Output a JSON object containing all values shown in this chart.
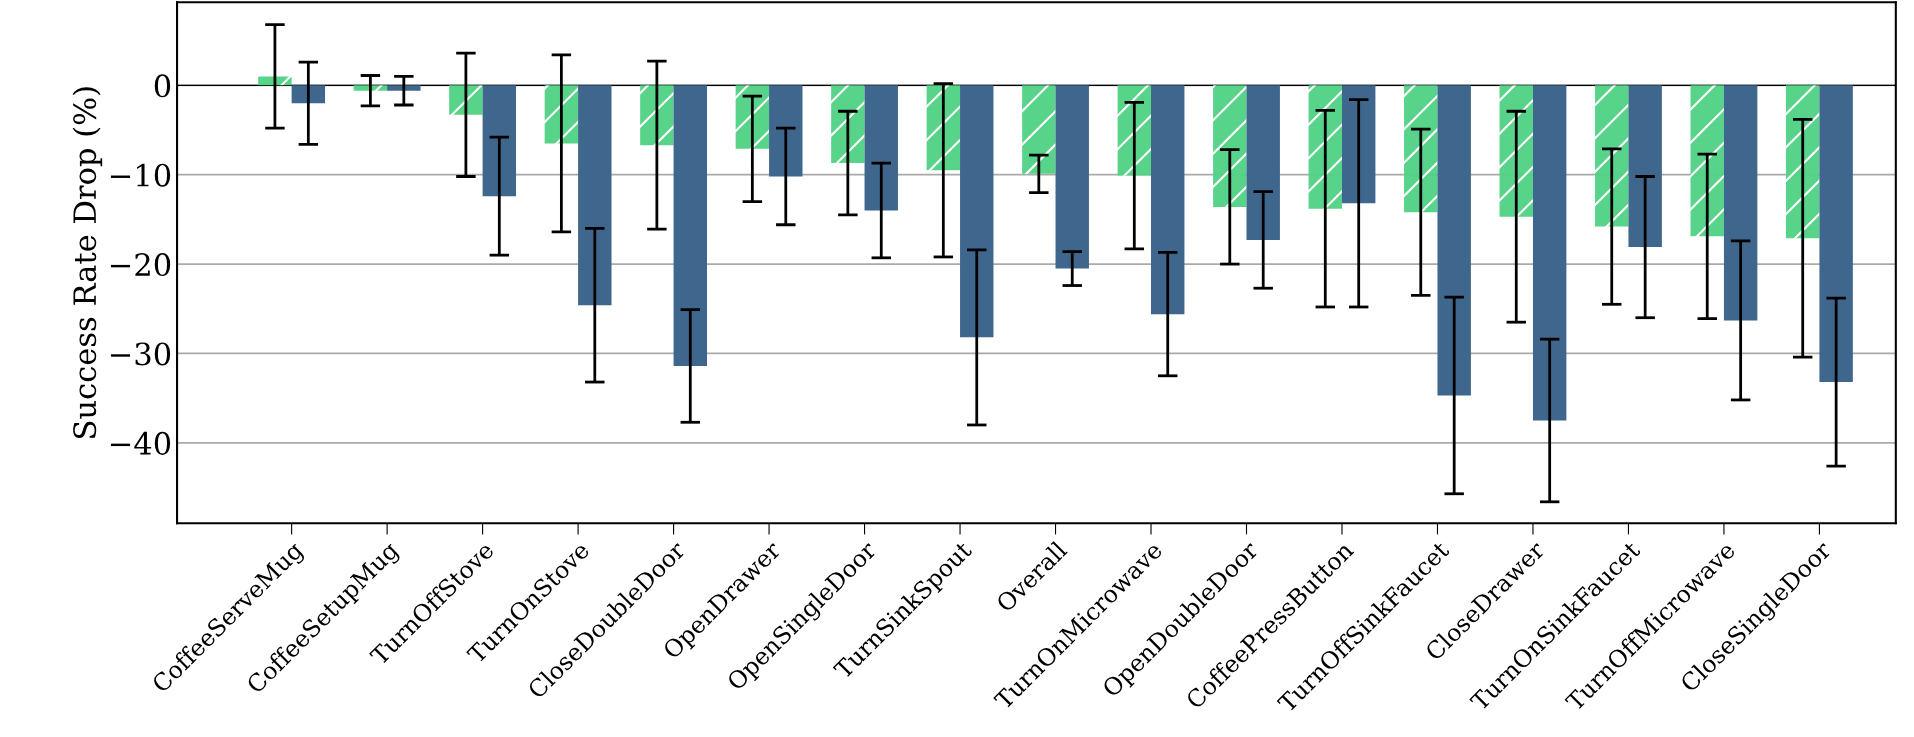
{
  "chart_data": {
    "type": "bar",
    "ylabel": "Success Rate Drop (%)",
    "categories": [
      "CoffeeServeMug",
      "CoffeeSetupMug",
      "TurnOffStove",
      "TurnOnStove",
      "CloseDoubleDoor",
      "OpenDrawer",
      "OpenSingleDoor",
      "TurnSinkSpout",
      "Overall",
      "TurnOnMicrowave",
      "OpenDoubleDoor",
      "CoffeePressButton",
      "TurnOffSinkFaucet",
      "CloseDrawer",
      "TurnOnSinkFaucet",
      "TurnOffMicrowave",
      "CloseSingleDoor"
    ],
    "series": [
      {
        "color": "#4fd184",
        "values": [
          1.0,
          -0.6,
          -3.3,
          -6.5,
          -6.7,
          -7.1,
          -8.7,
          -9.5,
          -9.9,
          -10.1,
          -13.6,
          -13.8,
          -14.2,
          -14.7,
          -15.8,
          -16.9,
          -17.1
        ],
        "errors": [
          5.8,
          1.7,
          6.9,
          9.9,
          9.4,
          5.9,
          5.8,
          9.7,
          2.1,
          8.2,
          6.4,
          11.0,
          9.3,
          11.8,
          8.7,
          9.2,
          13.3
        ]
      },
      {
        "color": "#3f668c",
        "values": [
          -2.0,
          -0.6,
          -12.4,
          -24.6,
          -31.4,
          -10.2,
          -14.0,
          -28.2,
          -20.5,
          -25.6,
          -17.3,
          -13.2,
          -34.7,
          -37.5,
          -18.1,
          -26.3,
          -33.2
        ],
        "errors": [
          4.6,
          1.6,
          6.6,
          8.6,
          6.3,
          5.4,
          5.3,
          9.8,
          1.9,
          6.9,
          5.4,
          11.6,
          11.0,
          9.1,
          7.9,
          8.9,
          9.4
        ]
      }
    ],
    "ylim": [
      -49,
      9.3
    ],
    "yticks": [
      0,
      {
        "value": -10,
        "label": "−10"
      },
      {
        "value": -20,
        "label": "−20"
      },
      {
        "value": -30,
        "label": "−30"
      },
      {
        "value": -40,
        "label": "−40"
      }
    ],
    "grid": "y",
    "ref_lines": [
      {
        "axis": "y",
        "value": 0,
        "color": "#000000"
      }
    ]
  }
}
